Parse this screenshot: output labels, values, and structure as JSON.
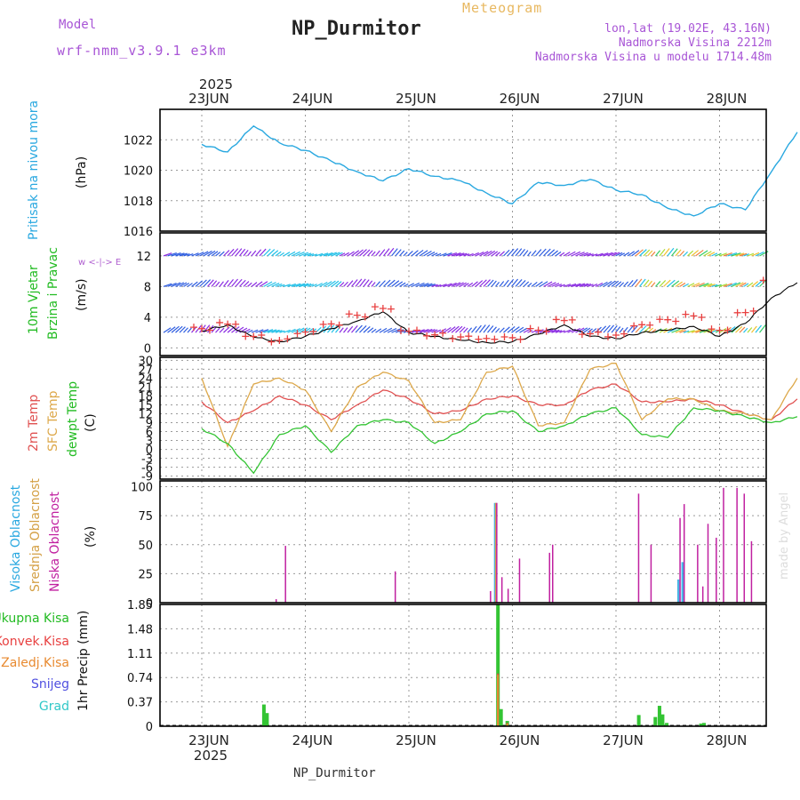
{
  "header": {
    "model_label": "Model",
    "model_name": "wrf-nmm_v3.9.1 e3km",
    "title": "NP_Durmitor",
    "subtitle": "Meteogram",
    "location_line1": "lon,lat (19.02E, 43.16N)",
    "location_line2": "Nadmorska Visina 2212m",
    "location_line3": "Nadmorska Visina u modelu 1714.48m"
  },
  "footer": {
    "station": "NP_Durmitor",
    "credit": "made by Angel"
  },
  "time_axis": {
    "year": "2025",
    "days": [
      "23JUN",
      "24JUN",
      "25JUN",
      "26JUN",
      "27JUN",
      "28JUN"
    ]
  },
  "colors": {
    "pressure": "#29a8e0",
    "wind_calm": "#2e5de0",
    "wind_purple": "#8a2be2",
    "wind_cyan": "#22c0e8",
    "gust_cross": "#e84040",
    "temp2m": "#e05050",
    "sfc": "#dda84a",
    "dewpt": "#33c433",
    "cloud_high": "#29a8e0",
    "cloud_mid": "#d4a045",
    "cloud_low": "#c020a0",
    "precip_total": "#33c433",
    "precip_conv": "#e84040",
    "precip_frozen": "#e88a30",
    "snow": "#5050e0",
    "hail": "#30c8c8"
  },
  "chart_data": [
    {
      "type": "line",
      "title": "Pritisak na nivou mora",
      "ylabel": "(hPa)",
      "ylim": [
        1016,
        1024
      ],
      "yticks": [
        "1016",
        "1018",
        "1020",
        "1022"
      ],
      "x_days": [
        0,
        0.25,
        0.5,
        0.75,
        1,
        1.25,
        1.5,
        1.75,
        2,
        2.25,
        2.5,
        2.75,
        3,
        3.25,
        3.5,
        3.75,
        4,
        4.25,
        4.5,
        4.75,
        5,
        5.25,
        5.5,
        5.75
      ],
      "series": [
        {
          "name": "Pritisak",
          "values": [
            1021.7,
            1021.2,
            1022.9,
            1021.8,
            1021.3,
            1020.6,
            1019.9,
            1019.3,
            1020.1,
            1019.6,
            1019.3,
            1018.5,
            1017.8,
            1019.2,
            1019.0,
            1019.4,
            1018.7,
            1018.4,
            1017.5,
            1017.0,
            1017.8,
            1017.4,
            1019.9,
            1022.5
          ]
        }
      ]
    },
    {
      "type": "line",
      "title": "10m Vjetar Brzina i Pravac",
      "ylabel": "(m/s)",
      "ylim": [
        -1,
        15
      ],
      "yticks": [
        "0",
        "4",
        "8",
        "12"
      ],
      "compass": "w <-|-> E",
      "bands": [
        "12",
        "8",
        "2"
      ],
      "x_days": [
        0,
        0.25,
        0.5,
        0.75,
        1,
        1.25,
        1.5,
        1.75,
        2,
        2.25,
        2.5,
        2.75,
        3,
        3.25,
        3.5,
        3.75,
        4,
        4.25,
        4.5,
        4.75,
        5,
        5.25,
        5.5,
        5.75
      ],
      "series": [
        {
          "name": "Brzina",
          "values": [
            2.2,
            3.0,
            1.4,
            0.8,
            1.5,
            2.5,
            3.5,
            4.7,
            2.0,
            1.5,
            1.0,
            0.7,
            0.8,
            1.8,
            3.0,
            1.5,
            1.2,
            2.0,
            2.3,
            2.8,
            1.5,
            3.2,
            6.5,
            8.5
          ]
        },
        {
          "name": "Udar",
          "values": [
            2.5,
            3.3,
            1.7,
            1.0,
            1.9,
            2.9,
            4.2,
            5.3,
            2.4,
            1.8,
            1.3,
            1.0,
            1.2,
            2.4,
            3.8,
            2.0,
            1.6,
            2.8,
            3.5,
            4.2,
            2.5,
            4.8,
            9.0,
            12.5
          ]
        }
      ]
    },
    {
      "type": "line",
      "title": "2m Temp / SFC Temp / dewpt Temp",
      "ylabel": "(C)",
      "ylim": [
        -10,
        31
      ],
      "yticks": [
        "30",
        "27",
        "24",
        "21",
        "18",
        "15",
        "12",
        "9",
        "6",
        "3",
        "0",
        "-3",
        "-6",
        "-9"
      ],
      "x_days": [
        0,
        0.25,
        0.5,
        0.75,
        1,
        1.25,
        1.5,
        1.75,
        2,
        2.25,
        2.5,
        2.75,
        3,
        3.25,
        3.5,
        3.75,
        4,
        4.25,
        4.5,
        4.75,
        5,
        5.25,
        5.5,
        5.75
      ],
      "series": [
        {
          "name": "2m Temp",
          "values": [
            16,
            9,
            13,
            18,
            15,
            10,
            15,
            20,
            17,
            12,
            13,
            17,
            18,
            15,
            15,
            20,
            22,
            16,
            16,
            17,
            15,
            12,
            10,
            17
          ]
        },
        {
          "name": "SFC Temp",
          "values": [
            24,
            1,
            22,
            24,
            20,
            6,
            21,
            26,
            23,
            9,
            10,
            26,
            28,
            8,
            9,
            27,
            29,
            10,
            17,
            17,
            13,
            12,
            10,
            24
          ]
        },
        {
          "name": "dewpt Temp",
          "values": [
            7,
            2,
            -8,
            5,
            8,
            -1,
            8,
            10,
            9,
            2,
            6,
            12,
            13,
            6,
            8,
            12,
            14,
            5,
            4,
            14,
            13,
            11,
            9,
            11
          ]
        }
      ]
    },
    {
      "type": "bar",
      "title": "Visoka / Srednja / Niska Oblacnost",
      "ylabel": "(%)",
      "ylim": [
        0,
        105
      ],
      "yticks": [
        "100",
        "75",
        "50",
        "25",
        "0"
      ],
      "x_days": [
        0.7,
        0.79,
        1.85,
        2.77,
        2.83,
        2.88,
        2.94,
        3.05,
        3.1,
        3.34,
        3.37,
        4.2,
        4.32,
        4.6,
        4.64,
        4.77,
        4.82,
        4.87,
        4.95,
        5.02,
        5.15,
        5.22,
        5.29
      ],
      "series": [
        {
          "name": "Visoka Oblacnost",
          "values": [
            0,
            0,
            0,
            0,
            86,
            0,
            0,
            0,
            0,
            0,
            0,
            0,
            0,
            20,
            35,
            0,
            0,
            0,
            0,
            0,
            0,
            0,
            0
          ]
        },
        {
          "name": "Srednja Oblacnost",
          "values": [
            0,
            0,
            0,
            0,
            86,
            0,
            0,
            0,
            0,
            0,
            0,
            0,
            0,
            0,
            0,
            0,
            0,
            0,
            0,
            0,
            0,
            0,
            0
          ]
        },
        {
          "name": "Niska Oblacnost",
          "values": [
            3,
            49,
            27,
            10,
            86,
            22,
            12,
            38,
            0,
            43,
            50,
            94,
            50,
            73,
            85,
            50,
            14,
            68,
            56,
            99,
            99,
            94,
            53
          ]
        }
      ]
    },
    {
      "type": "bar",
      "title": "1hr Precip",
      "ylabel": "(mm)",
      "ylim": [
        0,
        1.85
      ],
      "yticks": [
        "1.85",
        "1.48",
        "1.11",
        "0.74",
        "0.37",
        "0"
      ],
      "x_days": [
        0.6,
        0.63,
        2.86,
        2.89,
        2.95,
        4.22,
        4.38,
        4.42,
        4.45,
        4.49,
        4.82,
        4.85
      ],
      "series": [
        {
          "name": "Ukupna Kisa",
          "values": [
            0.33,
            0.2,
            1.85,
            0.26,
            0.08,
            0.17,
            0.14,
            0.31,
            0.18,
            0.05,
            0.04,
            0.05
          ]
        },
        {
          "name": "Konvek.Kisa",
          "values": [
            0,
            0,
            0.8,
            0,
            0.05,
            0,
            0,
            0,
            0,
            0,
            0,
            0
          ]
        },
        {
          "name": "Zaledj.Kisa",
          "values": [
            0,
            0,
            0.78,
            0,
            0.04,
            0,
            0,
            0,
            0,
            0,
            0,
            0
          ]
        },
        {
          "name": "Snijeg",
          "values": [
            0,
            0,
            0,
            0,
            0,
            0,
            0,
            0,
            0,
            0,
            0,
            0
          ]
        },
        {
          "name": "Grad",
          "values": [
            0,
            0,
            0,
            0,
            0,
            0,
            0,
            0,
            0,
            0,
            0,
            0
          ]
        }
      ]
    }
  ],
  "labels": {
    "p1": "Pritisak na nivou mora",
    "p1_unit": "(hPa)",
    "p2a": "10m Vjetar",
    "p2b": "Brzina i Pravac",
    "p2_unit": "(m/s)",
    "p2_compass": "w <-|-> E",
    "p3a": "2m Temp",
    "p3b": "SFC Temp",
    "p3c": "dewpt Temp",
    "p3_unit": "(C)",
    "p4a": "Visoka Oblacnost",
    "p4b": "Srednja Oblacnost",
    "p4c": "Niska Oblacnost",
    "p4_unit": "(%)",
    "p5_legend": [
      "Ukupna Kisa",
      "Konvek.Kisa",
      "Zaledj.Kisa",
      "Snijeg",
      "Grad"
    ],
    "p5_unit": "1hr Precip (mm)"
  }
}
